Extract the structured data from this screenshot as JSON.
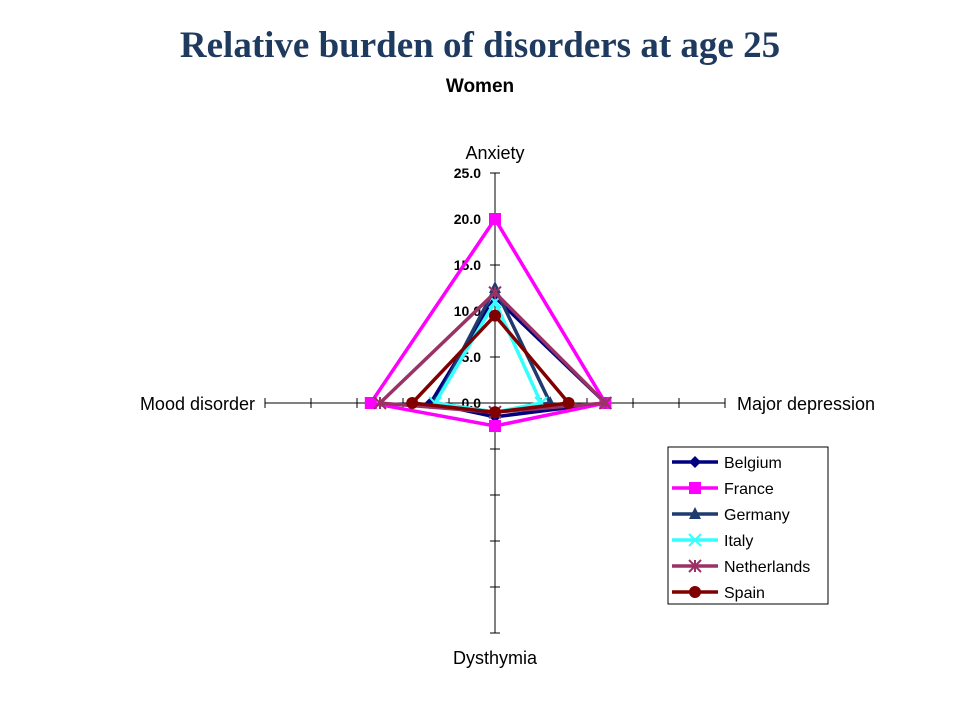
{
  "slide": {
    "title": "Relative burden of disorders at age 25"
  },
  "chart_data": {
    "type": "radar",
    "subtitle": "Women",
    "axes": [
      "Anxiety",
      "Major depression",
      "Dysthymia",
      "Mood disorder"
    ],
    "range": [
      0,
      25
    ],
    "ticks": [
      "0.0",
      "5.0",
      "10.0",
      "15.0",
      "20.0",
      "25.0"
    ],
    "tick_values": [
      0,
      5,
      10,
      15,
      20,
      25
    ],
    "grid": false,
    "legend_position": "bottom-right",
    "series": [
      {
        "name": "Belgium",
        "values": [
          11.5,
          12.0,
          1.5,
          7.0
        ],
        "color": "#000080",
        "marker": "diamond"
      },
      {
        "name": "France",
        "values": [
          20.0,
          12.0,
          2.5,
          13.5
        ],
        "color": "#ff00ff",
        "marker": "square"
      },
      {
        "name": "Germany",
        "values": [
          12.5,
          6.0,
          1.0,
          6.5
        ],
        "color": "#1f3a6e",
        "marker": "triangle"
      },
      {
        "name": "Italy",
        "values": [
          11.0,
          5.0,
          1.0,
          6.5
        ],
        "color": "#33ffff",
        "marker": "x"
      },
      {
        "name": "Netherlands",
        "values": [
          12.0,
          12.0,
          1.0,
          12.5
        ],
        "color": "#993366",
        "marker": "star"
      },
      {
        "name": "Spain",
        "values": [
          9.5,
          8.0,
          1.0,
          9.0
        ],
        "color": "#800000",
        "marker": "circle"
      }
    ]
  }
}
